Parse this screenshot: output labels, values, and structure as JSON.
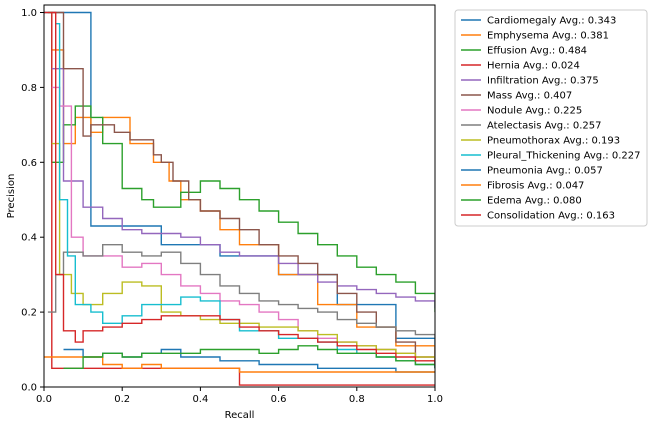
{
  "chart_data": {
    "type": "line",
    "xlabel": "Recall",
    "ylabel": "Precision",
    "xlim": [
      0,
      1
    ],
    "ylim": [
      0,
      1.02
    ],
    "xticks": [
      "0.0",
      "0.2",
      "0.4",
      "0.6",
      "0.8",
      "1.0"
    ],
    "yticks": [
      "0.0",
      "0.2",
      "0.4",
      "0.6",
      "0.8",
      "1.0"
    ],
    "grid": false,
    "legend_position": "outside-right",
    "series": [
      {
        "name": "Cardiomegaly Avg.: 0.343",
        "color": "#1f77b4",
        "points": [
          [
            0,
            1.0
          ],
          [
            0.05,
            1.0
          ],
          [
            0.12,
            1.0
          ],
          [
            0.12,
            0.43
          ],
          [
            0.3,
            0.43
          ],
          [
            0.3,
            0.38
          ],
          [
            0.45,
            0.35
          ],
          [
            0.6,
            0.3
          ],
          [
            0.75,
            0.22
          ],
          [
            0.9,
            0.13
          ],
          [
            1.0,
            0.05
          ]
        ]
      },
      {
        "name": "Emphysema Avg.: 0.381",
        "color": "#ff7f0e",
        "points": [
          [
            0.02,
            0.9
          ],
          [
            0.05,
            0.65
          ],
          [
            0.08,
            0.72
          ],
          [
            0.12,
            0.68
          ],
          [
            0.15,
            0.72
          ],
          [
            0.22,
            0.65
          ],
          [
            0.28,
            0.6
          ],
          [
            0.32,
            0.55
          ],
          [
            0.35,
            0.5
          ],
          [
            0.4,
            0.47
          ],
          [
            0.45,
            0.42
          ],
          [
            0.5,
            0.38
          ],
          [
            0.6,
            0.3
          ],
          [
            0.7,
            0.22
          ],
          [
            0.8,
            0.16
          ],
          [
            0.9,
            0.11
          ],
          [
            1.0,
            0.07
          ]
        ]
      },
      {
        "name": "Effusion Avg.: 0.484",
        "color": "#2ca02c",
        "points": [
          [
            0.01,
            1.0
          ],
          [
            0.02,
            0.6
          ],
          [
            0.05,
            0.7
          ],
          [
            0.08,
            0.75
          ],
          [
            0.12,
            0.72
          ],
          [
            0.15,
            0.65
          ],
          [
            0.2,
            0.53
          ],
          [
            0.25,
            0.5
          ],
          [
            0.28,
            0.48
          ],
          [
            0.3,
            0.48
          ],
          [
            0.35,
            0.52
          ],
          [
            0.4,
            0.55
          ],
          [
            0.45,
            0.53
          ],
          [
            0.5,
            0.5
          ],
          [
            0.55,
            0.47
          ],
          [
            0.6,
            0.44
          ],
          [
            0.65,
            0.41
          ],
          [
            0.7,
            0.38
          ],
          [
            0.75,
            0.35
          ],
          [
            0.8,
            0.32
          ],
          [
            0.85,
            0.3
          ],
          [
            0.9,
            0.28
          ],
          [
            0.95,
            0.25
          ],
          [
            1.0,
            0.2
          ]
        ]
      },
      {
        "name": "Hernia Avg.: 0.024",
        "color": "#d62728",
        "points": [
          [
            0,
            1.0
          ],
          [
            0.02,
            1.0
          ],
          [
            0.02,
            0.05
          ],
          [
            0.5,
            0.04
          ],
          [
            0.5,
            0.005
          ],
          [
            1.0,
            0.005
          ]
        ]
      },
      {
        "name": "Infiltration Avg.: 0.375",
        "color": "#9467bd",
        "points": [
          [
            0.02,
            0.85
          ],
          [
            0.05,
            0.55
          ],
          [
            0.1,
            0.48
          ],
          [
            0.15,
            0.45
          ],
          [
            0.2,
            0.42
          ],
          [
            0.25,
            0.41
          ],
          [
            0.3,
            0.41
          ],
          [
            0.35,
            0.4
          ],
          [
            0.4,
            0.38
          ],
          [
            0.45,
            0.36
          ],
          [
            0.5,
            0.35
          ],
          [
            0.55,
            0.35
          ],
          [
            0.6,
            0.33
          ],
          [
            0.65,
            0.3
          ],
          [
            0.7,
            0.28
          ],
          [
            0.75,
            0.27
          ],
          [
            0.8,
            0.26
          ],
          [
            0.85,
            0.25
          ],
          [
            0.9,
            0.24
          ],
          [
            0.95,
            0.23
          ],
          [
            1.0,
            0.21
          ]
        ]
      },
      {
        "name": "Mass Avg.: 0.407",
        "color": "#8c564b",
        "points": [
          [
            0.02,
            1.0
          ],
          [
            0.05,
            0.85
          ],
          [
            0.1,
            0.67
          ],
          [
            0.12,
            0.7
          ],
          [
            0.18,
            0.68
          ],
          [
            0.22,
            0.66
          ],
          [
            0.28,
            0.62
          ],
          [
            0.3,
            0.6
          ],
          [
            0.33,
            0.55
          ],
          [
            0.37,
            0.5
          ],
          [
            0.4,
            0.47
          ],
          [
            0.45,
            0.45
          ],
          [
            0.5,
            0.42
          ],
          [
            0.55,
            0.38
          ],
          [
            0.6,
            0.35
          ],
          [
            0.65,
            0.33
          ],
          [
            0.7,
            0.3
          ],
          [
            0.75,
            0.25
          ],
          [
            0.8,
            0.2
          ],
          [
            0.85,
            0.16
          ],
          [
            0.9,
            0.12
          ],
          [
            0.95,
            0.08
          ],
          [
            1.0,
            0.05
          ]
        ]
      },
      {
        "name": "Nodule Avg.: 0.225",
        "color": "#e377c2",
        "points": [
          [
            0.02,
            0.8
          ],
          [
            0.04,
            0.75
          ],
          [
            0.07,
            0.4
          ],
          [
            0.1,
            0.35
          ],
          [
            0.15,
            0.35
          ],
          [
            0.2,
            0.32
          ],
          [
            0.25,
            0.33
          ],
          [
            0.3,
            0.3
          ],
          [
            0.35,
            0.27
          ],
          [
            0.4,
            0.25
          ],
          [
            0.45,
            0.23
          ],
          [
            0.5,
            0.22
          ],
          [
            0.55,
            0.2
          ],
          [
            0.6,
            0.18
          ],
          [
            0.65,
            0.15
          ],
          [
            0.7,
            0.13
          ],
          [
            0.75,
            0.12
          ],
          [
            0.8,
            0.11
          ],
          [
            0.85,
            0.1
          ],
          [
            0.9,
            0.09
          ],
          [
            0.95,
            0.08
          ],
          [
            1.0,
            0.07
          ]
        ]
      },
      {
        "name": "Atelectasis Avg.: 0.257",
        "color": "#7f7f7f",
        "points": [
          [
            0.01,
            0.2
          ],
          [
            0.03,
            0.3
          ],
          [
            0.05,
            0.36
          ],
          [
            0.1,
            0.35
          ],
          [
            0.15,
            0.38
          ],
          [
            0.2,
            0.36
          ],
          [
            0.25,
            0.35
          ],
          [
            0.3,
            0.36
          ],
          [
            0.35,
            0.33
          ],
          [
            0.4,
            0.3
          ],
          [
            0.45,
            0.27
          ],
          [
            0.5,
            0.25
          ],
          [
            0.55,
            0.23
          ],
          [
            0.6,
            0.22
          ],
          [
            0.65,
            0.21
          ],
          [
            0.7,
            0.2
          ],
          [
            0.75,
            0.18
          ],
          [
            0.8,
            0.17
          ],
          [
            0.85,
            0.16
          ],
          [
            0.9,
            0.15
          ],
          [
            0.95,
            0.14
          ],
          [
            1.0,
            0.13
          ]
        ]
      },
      {
        "name": "Pneumothorax Avg.: 0.193",
        "color": "#bcbd22",
        "points": [
          [
            0.02,
            0.65
          ],
          [
            0.04,
            0.3
          ],
          [
            0.07,
            0.25
          ],
          [
            0.1,
            0.22
          ],
          [
            0.15,
            0.25
          ],
          [
            0.2,
            0.28
          ],
          [
            0.25,
            0.27
          ],
          [
            0.3,
            0.2
          ],
          [
            0.35,
            0.19
          ],
          [
            0.4,
            0.18
          ],
          [
            0.45,
            0.17
          ],
          [
            0.5,
            0.17
          ],
          [
            0.55,
            0.16
          ],
          [
            0.6,
            0.16
          ],
          [
            0.65,
            0.15
          ],
          [
            0.7,
            0.14
          ],
          [
            0.75,
            0.12
          ],
          [
            0.8,
            0.11
          ],
          [
            0.85,
            0.1
          ],
          [
            0.9,
            0.09
          ],
          [
            0.95,
            0.08
          ],
          [
            1.0,
            0.07
          ]
        ]
      },
      {
        "name": "Pleural_Thickening Avg.: 0.227",
        "color": "#17becf",
        "points": [
          [
            0.03,
            0.97
          ],
          [
            0.04,
            0.5
          ],
          [
            0.06,
            0.35
          ],
          [
            0.08,
            0.22
          ],
          [
            0.12,
            0.2
          ],
          [
            0.15,
            0.17
          ],
          [
            0.2,
            0.19
          ],
          [
            0.25,
            0.22
          ],
          [
            0.3,
            0.22
          ],
          [
            0.35,
            0.24
          ],
          [
            0.4,
            0.23
          ],
          [
            0.45,
            0.18
          ],
          [
            0.5,
            0.15
          ],
          [
            0.55,
            0.15
          ],
          [
            0.6,
            0.13
          ],
          [
            0.65,
            0.13
          ],
          [
            0.7,
            0.12
          ],
          [
            0.75,
            0.1
          ],
          [
            0.8,
            0.09
          ],
          [
            0.85,
            0.08
          ],
          [
            0.9,
            0.07
          ],
          [
            0.95,
            0.06
          ],
          [
            1.0,
            0.05
          ]
        ]
      },
      {
        "name": "Pneumonia Avg.: 0.057",
        "color": "#1f77b4",
        "points": [
          [
            0.05,
            0.1
          ],
          [
            0.1,
            0.08
          ],
          [
            0.15,
            0.09
          ],
          [
            0.2,
            0.08
          ],
          [
            0.25,
            0.09
          ],
          [
            0.3,
            0.1
          ],
          [
            0.35,
            0.08
          ],
          [
            0.4,
            0.08
          ],
          [
            0.45,
            0.07
          ],
          [
            0.5,
            0.07
          ],
          [
            0.55,
            0.06
          ],
          [
            0.6,
            0.06
          ],
          [
            0.65,
            0.06
          ],
          [
            0.7,
            0.05
          ],
          [
            0.75,
            0.05
          ],
          [
            0.8,
            0.05
          ],
          [
            0.85,
            0.05
          ],
          [
            0.9,
            0.04
          ],
          [
            0.95,
            0.04
          ],
          [
            1.0,
            0.04
          ]
        ]
      },
      {
        "name": "Fibrosis Avg.: 0.047",
        "color": "#ff7f0e",
        "points": [
          [
            0,
            0.08
          ],
          [
            0.05,
            0.08
          ],
          [
            0.1,
            0.08
          ],
          [
            0.15,
            0.06
          ],
          [
            0.2,
            0.05
          ],
          [
            0.25,
            0.06
          ],
          [
            0.3,
            0.05
          ],
          [
            0.35,
            0.05
          ],
          [
            0.4,
            0.05
          ],
          [
            0.45,
            0.05
          ],
          [
            0.5,
            0.04
          ],
          [
            0.55,
            0.04
          ],
          [
            0.6,
            0.04
          ],
          [
            0.7,
            0.04
          ],
          [
            0.8,
            0.04
          ],
          [
            0.9,
            0.04
          ],
          [
            1.0,
            0.04
          ]
        ]
      },
      {
        "name": "Edema Avg.: 0.080",
        "color": "#2ca02c",
        "points": [
          [
            0.05,
            0.05
          ],
          [
            0.1,
            0.08
          ],
          [
            0.15,
            0.09
          ],
          [
            0.2,
            0.08
          ],
          [
            0.25,
            0.09
          ],
          [
            0.3,
            0.09
          ],
          [
            0.35,
            0.09
          ],
          [
            0.4,
            0.1
          ],
          [
            0.45,
            0.1
          ],
          [
            0.5,
            0.1
          ],
          [
            0.55,
            0.09
          ],
          [
            0.6,
            0.1
          ],
          [
            0.65,
            0.11
          ],
          [
            0.7,
            0.1
          ],
          [
            0.75,
            0.09
          ],
          [
            0.8,
            0.09
          ],
          [
            0.85,
            0.08
          ],
          [
            0.9,
            0.07
          ],
          [
            0.95,
            0.06
          ],
          [
            1.0,
            0.05
          ]
        ]
      },
      {
        "name": "Consolidation Avg.: 0.163",
        "color": "#d62728",
        "points": [
          [
            0.02,
            1.0
          ],
          [
            0.03,
            0.3
          ],
          [
            0.05,
            0.15
          ],
          [
            0.08,
            0.12
          ],
          [
            0.1,
            0.15
          ],
          [
            0.15,
            0.16
          ],
          [
            0.2,
            0.17
          ],
          [
            0.25,
            0.18
          ],
          [
            0.3,
            0.19
          ],
          [
            0.35,
            0.19
          ],
          [
            0.4,
            0.19
          ],
          [
            0.45,
            0.18
          ],
          [
            0.5,
            0.16
          ],
          [
            0.55,
            0.15
          ],
          [
            0.6,
            0.14
          ],
          [
            0.65,
            0.13
          ],
          [
            0.7,
            0.12
          ],
          [
            0.75,
            0.11
          ],
          [
            0.8,
            0.1
          ],
          [
            0.85,
            0.09
          ],
          [
            0.9,
            0.08
          ],
          [
            0.95,
            0.07
          ],
          [
            1.0,
            0.06
          ]
        ]
      }
    ]
  }
}
